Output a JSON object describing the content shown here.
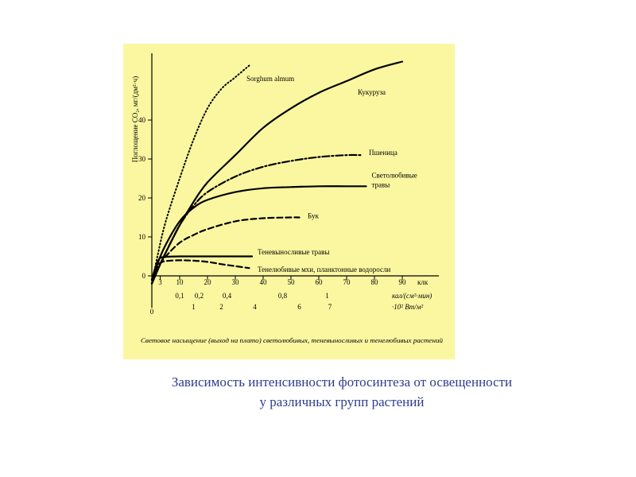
{
  "chart_data": {
    "type": "line",
    "ylabel": "Поглощение CO₂, мг/(дм²·ч)",
    "x_units": [
      "клк",
      "кал/(см²·мин)",
      "·10² Вт/м²"
    ],
    "x_ticks_klk": [
      "3",
      "10",
      "20",
      "30",
      "40",
      "50",
      "60",
      "70",
      "80",
      "90"
    ],
    "x_ticks_cal": [
      "0,1",
      "0,2",
      "0,4",
      "0,8",
      "1"
    ],
    "x_ticks_wm2": [
      "1",
      "2",
      "4",
      "6",
      "7"
    ],
    "x_zero_label": "0",
    "y_ticks": [
      "0",
      "10",
      "20",
      "30",
      "40"
    ],
    "ylim": [
      -10,
      55
    ],
    "xlim": [
      0,
      100
    ],
    "series": [
      {
        "name": "Sorghum almum",
        "style": "dotted",
        "x": [
          0,
          2,
          5,
          10,
          15,
          20,
          25,
          30,
          35
        ],
        "y": [
          -2,
          5,
          14,
          25,
          35,
          43,
          48,
          51,
          54
        ]
      },
      {
        "name": "Кукуруза",
        "style": "solid",
        "x": [
          0,
          3,
          5,
          10,
          15,
          20,
          30,
          40,
          50,
          60,
          70,
          80,
          90
        ],
        "y": [
          -2,
          3,
          6,
          13,
          19,
          24,
          31,
          38,
          43,
          47,
          50,
          53,
          55
        ]
      },
      {
        "name": "Пшеница",
        "style": "dashdot",
        "x": [
          0,
          3,
          5,
          10,
          15,
          20,
          30,
          40,
          50,
          60,
          70,
          75
        ],
        "y": [
          -2,
          3,
          6,
          13,
          18,
          21.5,
          25.5,
          28,
          29.5,
          30.5,
          31,
          31
        ]
      },
      {
        "name": "Светолюбивые травы",
        "style": "solid",
        "x": [
          0,
          2,
          5,
          10,
          15,
          20,
          30,
          40,
          50,
          60,
          70,
          77
        ],
        "y": [
          -2,
          3,
          8,
          14,
          17.5,
          19.5,
          21.5,
          22.5,
          22.8,
          23,
          23,
          23
        ]
      },
      {
        "name": "Бук",
        "style": "dashed",
        "x": [
          0,
          2,
          5,
          10,
          15,
          20,
          30,
          40,
          50,
          53
        ],
        "y": [
          -1,
          2,
          5,
          8.5,
          10.5,
          12,
          14,
          14.8,
          15,
          15
        ]
      },
      {
        "name": "Теневыносливые травы",
        "style": "solid",
        "x": [
          0,
          1,
          2,
          3,
          5,
          10,
          20,
          30,
          36
        ],
        "y": [
          -1,
          1.5,
          3.5,
          4.6,
          4.9,
          5,
          5,
          5,
          5
        ]
      },
      {
        "name": "Тенелюбивые мхи, планктонные водоросли",
        "style": "dashed",
        "x": [
          0,
          1,
          2,
          3,
          5,
          10,
          15,
          20,
          25,
          30,
          35
        ],
        "y": [
          -1,
          1,
          2.5,
          3.3,
          3.8,
          4,
          3.9,
          3.6,
          3,
          2.5,
          2
        ]
      }
    ],
    "footnote": "Световое насыщение (выход на плато) светолюбивых, теневыносливых и тенелюбивых растений"
  },
  "caption": {
    "line1": "Зависимость интенсивности фотосинтеза от освещенности",
    "line2": "у различных групп растений"
  }
}
